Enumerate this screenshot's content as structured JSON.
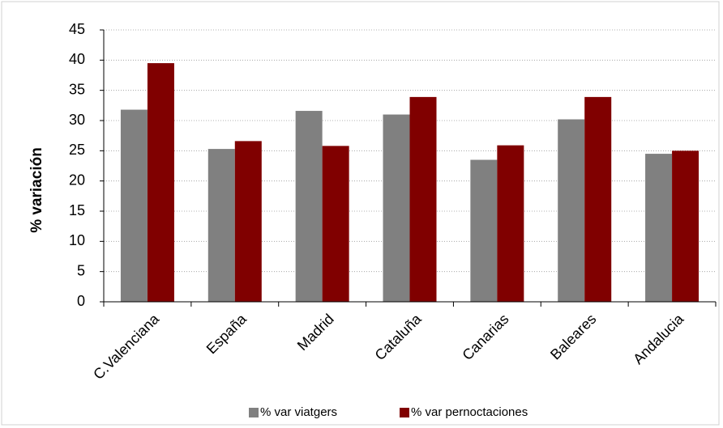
{
  "chart_data": {
    "type": "bar",
    "y_label": "% variación",
    "categories": [
      "C.Valenciana",
      "España",
      "Madrid",
      "Cataluña",
      "Canarias",
      "Baleares",
      "Andalucia"
    ],
    "series": [
      {
        "name": "% var viatgers",
        "color": "#808080",
        "values": [
          31.8,
          25.3,
          31.6,
          31.0,
          23.5,
          30.2,
          24.5
        ]
      },
      {
        "name": "% var pernoctaciones",
        "color": "#800000",
        "values": [
          39.5,
          26.6,
          25.8,
          33.9,
          25.9,
          33.9,
          25.0
        ]
      }
    ],
    "ylim": [
      0,
      45
    ],
    "yticks": [
      0,
      5,
      10,
      15,
      20,
      25,
      30,
      35,
      40,
      45
    ],
    "grid": true,
    "legend": "bottom"
  }
}
